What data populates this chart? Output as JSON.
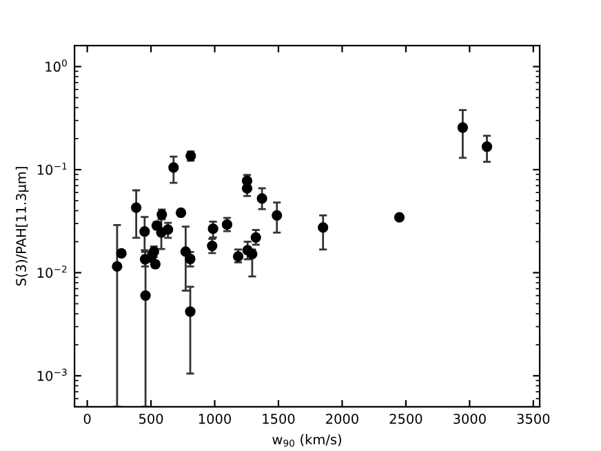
{
  "chart_data": {
    "type": "scatter",
    "xlabel": "w$_{90}$ (km/s)",
    "ylabel": "S(3)/PAH[11.3μm]",
    "log": "y",
    "marker": "circle",
    "grid": false,
    "xlim": [
      -100,
      3550
    ],
    "xticks": [
      0,
      500,
      1000,
      1500,
      2000,
      2500,
      3000,
      3500
    ],
    "ylim": [
      0.0005,
      1.6
    ],
    "yticks": [
      {
        "value": 0.001,
        "label": "10$^{−3}$"
      },
      {
        "value": 0.01,
        "label": "10$^{−2}$"
      },
      {
        "value": 0.1,
        "label": "10$^{−1}$"
      },
      {
        "value": 1,
        "label": "10$^{0}$"
      }
    ],
    "series": [
      {
        "color": "#000000",
        "x": [
          234,
          268,
          384,
          450,
          454,
          457,
          501,
          523,
          534,
          545,
          585,
          581,
          633,
          677,
          735,
          772,
          808,
          808,
          812,
          980,
          987,
          1097,
          1184,
          1254,
          1254,
          1258,
          1294,
          1323,
          1371,
          1488,
          1850,
          2449,
          2946,
          3136
        ],
        "values": [
          0.0115,
          0.0154,
          0.0428,
          0.0251,
          0.0135,
          0.006,
          0.014,
          0.016,
          0.0121,
          0.0287,
          0.0367,
          0.0246,
          0.0262,
          0.105,
          0.0382,
          0.016,
          0.0136,
          0.0042,
          0.136,
          0.0182,
          0.0267,
          0.0293,
          0.0144,
          0.078,
          0.0658,
          0.0165,
          0.0152,
          0.022,
          0.0525,
          0.036,
          0.0275,
          0.0345,
          0.256,
          0.167
        ],
        "errors": [
          [
            0.0005,
            0.029
          ],
          [
            0.0145,
            0.0165
          ],
          [
            0.0218,
            0.063
          ],
          [
            0.0165,
            0.0348
          ],
          [
            0.0115,
            0.0159
          ],
          [
            0.0005,
            0.0146
          ],
          [
            0.0128,
            0.0155
          ],
          [
            0.0142,
            0.018
          ],
          [
            0.0112,
            0.013
          ],
          [
            0.0266,
            0.031
          ],
          [
            0.033,
            0.041
          ],
          [
            0.017,
            0.033
          ],
          [
            0.0218,
            0.0305
          ],
          [
            0.0745,
            0.134
          ],
          [
            0.037,
            0.0395
          ],
          [
            0.0067,
            0.028
          ],
          [
            0.0115,
            0.0159
          ],
          [
            0.00105,
            0.0073
          ],
          [
            0.122,
            0.15
          ],
          [
            0.0155,
            0.0213
          ],
          [
            0.022,
            0.0313
          ],
          [
            0.0253,
            0.034
          ],
          [
            0.0126,
            0.0168
          ],
          [
            0.0686,
            0.089
          ],
          [
            0.0555,
            0.074
          ],
          [
            0.0135,
            0.02
          ],
          [
            0.0092,
            0.0168
          ],
          [
            0.0187,
            0.026
          ],
          [
            0.0414,
            0.066
          ],
          [
            0.0245,
            0.048
          ],
          [
            0.0168,
            0.036
          ],
          [
            0.033,
            0.0365
          ],
          [
            0.13,
            0.378
          ],
          [
            0.119,
            0.213
          ]
        ]
      }
    ]
  }
}
